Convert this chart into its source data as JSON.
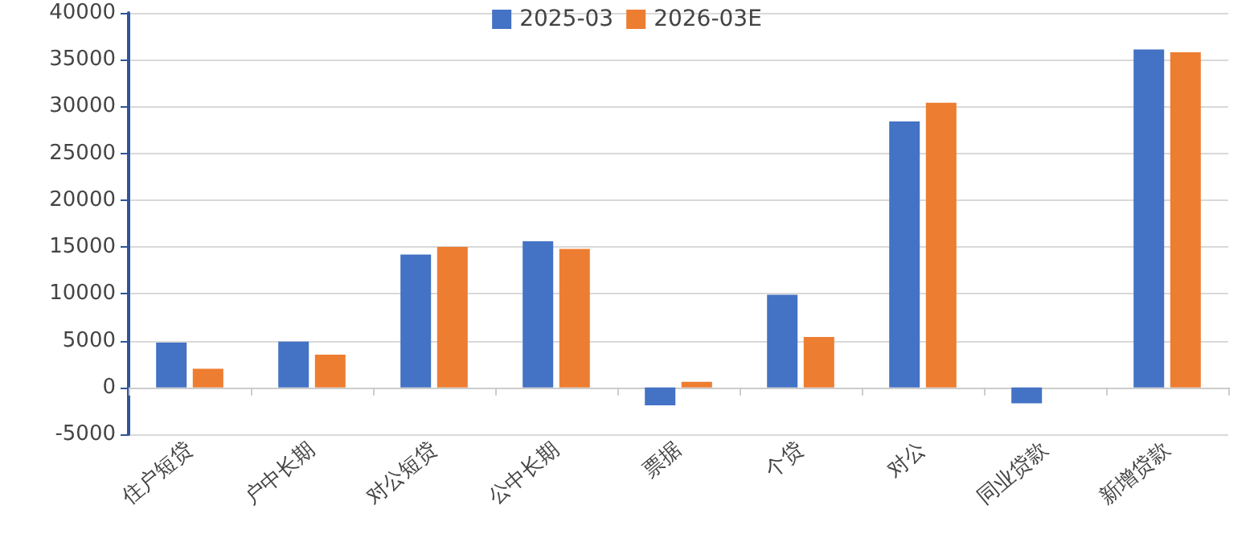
{
  "chart_data": {
    "type": "bar",
    "categories": [
      "住户短贷",
      "户中长期",
      "对公短贷",
      "公中长期",
      "票据",
      "个贷",
      "对公",
      "同业贷款",
      "新增贷款"
    ],
    "series": [
      {
        "name": "2025-03",
        "color": "#4472c4",
        "values": [
          4800,
          4900,
          14200,
          15600,
          -1900,
          9900,
          28400,
          -1700,
          36100
        ]
      },
      {
        "name": "2026-03E",
        "color": "#ed7d31",
        "values": [
          2000,
          3500,
          15000,
          14800,
          600,
          5400,
          30400,
          null,
          35800
        ]
      }
    ],
    "ylim": [
      -5000,
      40000
    ],
    "yticks": [
      -5000,
      0,
      5000,
      10000,
      15000,
      20000,
      25000,
      30000,
      35000,
      40000
    ],
    "grid": "y",
    "legend": "top"
  }
}
